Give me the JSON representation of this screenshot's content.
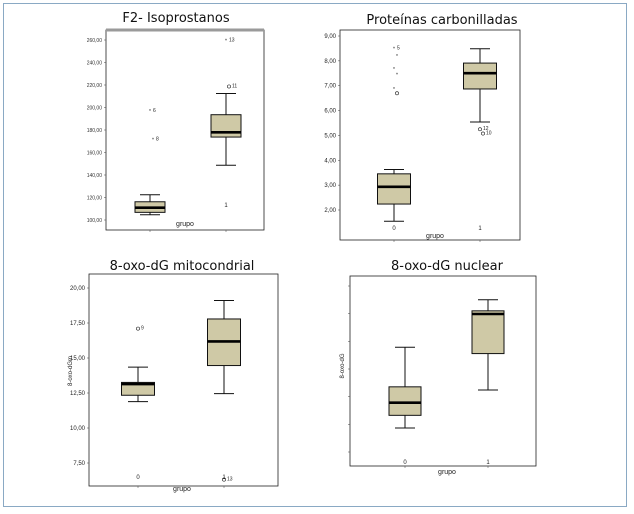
{
  "chart_data": [
    {
      "type": "box",
      "title": "F2- Isoprostanos",
      "xlabel": "grupo",
      "ylabel": "",
      "categories": [
        "0",
        "1"
      ],
      "yticks": [
        "100,00",
        "120,00",
        "140,00",
        "160,00",
        "180,00",
        "200,00",
        "220,00",
        "240,00",
        "260,00"
      ],
      "ylim": [
        95,
        265
      ],
      "boxes": [
        {
          "min": 108,
          "q1": 110,
          "median": 114,
          "q3": 119,
          "max": 125
        },
        {
          "min": 150,
          "q1": 174,
          "median": 178,
          "q3": 193,
          "max": 211
        }
      ],
      "outliers": [
        [
          {
            "y": 196,
            "label": "6",
            "marker": "star"
          },
          {
            "y": 172,
            "label": "8",
            "marker": "star"
          }
        ],
        [
          {
            "y": 256,
            "label": "13",
            "marker": "star"
          },
          {
            "y": 217,
            "label": "11",
            "marker": "circle"
          }
        ]
      ]
    },
    {
      "type": "box",
      "title": "Proteínas carbonilladas",
      "xlabel": "grupo",
      "ylabel": "",
      "categories": [
        "0",
        "1"
      ],
      "yticks": [
        "2,00",
        "3,00",
        "4,00",
        "5,00",
        "6,00",
        "7,00",
        "8,00",
        "9,00"
      ],
      "ylim": [
        1.8,
        9.1
      ],
      "boxes": [
        {
          "min": 2.45,
          "q1": 3.05,
          "median": 3.65,
          "q3": 4.1,
          "max": 4.25
        },
        {
          "min": 5.9,
          "q1": 7.05,
          "median": 7.6,
          "q3": 7.95,
          "max": 8.45
        }
      ],
      "outliers": [
        [
          {
            "y": 8.45,
            "label": "5",
            "marker": "star"
          },
          {
            "y": 8.2,
            "label": "",
            "marker": "star"
          },
          {
            "y": 7.75,
            "label": "",
            "marker": "star"
          },
          {
            "y": 7.55,
            "label": "",
            "marker": "star"
          },
          {
            "y": 7.05,
            "label": "",
            "marker": "star"
          },
          {
            "y": 6.9,
            "label": "",
            "marker": "circle"
          }
        ],
        [
          {
            "y": 5.65,
            "label": "12",
            "marker": "circle"
          },
          {
            "y": 5.5,
            "label": "10",
            "marker": "circle"
          }
        ]
      ]
    },
    {
      "type": "box",
      "title": "8-oxo-dG mitocondrial",
      "xlabel": "grupo",
      "ylabel": "8-oxo-dGm",
      "categories": [
        "0",
        "1"
      ],
      "yticks": [
        "7,50",
        "10,00",
        "12,50",
        "15,00",
        "17,50",
        "20,00"
      ],
      "ylim": [
        7.0,
        20.2
      ],
      "boxes": [
        {
          "min": 12.25,
          "q1": 12.65,
          "median": 13.35,
          "q3": 13.45,
          "max": 14.4
        },
        {
          "min": 12.75,
          "q1": 14.5,
          "median": 16.0,
          "q3": 17.4,
          "max": 18.55
        }
      ],
      "outliers": [
        [
          {
            "y": 16.8,
            "label": "9",
            "marker": "circle"
          }
        ],
        [
          {
            "y": 7.4,
            "label": "13",
            "marker": "circle"
          }
        ]
      ]
    },
    {
      "type": "box",
      "title": "8-oxo-dG nuclear",
      "xlabel": "grupo",
      "ylabel": "8-oxo-dG",
      "categories": [
        "0",
        "1"
      ],
      "yticks": [
        "",
        "",
        "",
        "",
        "",
        "",
        ""
      ],
      "ylim": [
        0,
        6
      ],
      "boxes": [
        {
          "min": 1.2,
          "q1": 1.6,
          "median": 2.0,
          "q3": 2.5,
          "max": 3.75
        },
        {
          "min": 2.4,
          "q1": 3.55,
          "median": 4.8,
          "q3": 4.9,
          "max": 5.25
        }
      ],
      "outliers": [
        [],
        []
      ]
    }
  ],
  "colors": {
    "box_fill": "#cfc9a6",
    "frame_border": "#8aa9c4",
    "f2_top_line": "#9a9a9a"
  }
}
